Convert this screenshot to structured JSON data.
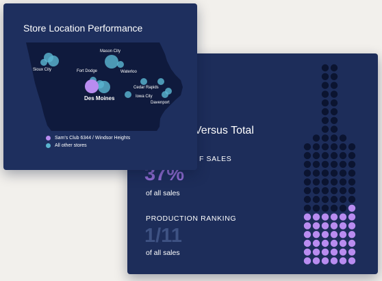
{
  "back_card": {
    "title_fragment": "Versus Total",
    "share": {
      "label_fragment": "F SALES",
      "value": "37%",
      "sub": "of all sales"
    },
    "ranking": {
      "label": "PRODUCTION RANKING",
      "value": "1/11",
      "sub": "of all sales"
    },
    "bottle_chart": {
      "filled_dots": 37,
      "total_dots": 108,
      "filled_color": "#b98cf0",
      "empty_color": "#0b1430"
    }
  },
  "front_card": {
    "title": "Store Location Performance",
    "map": {
      "fill_color": "#0f1a3d",
      "highlight_color": "#b98cf0",
      "other_color": "#5ab5cf",
      "cities": [
        {
          "name": "Sioux City",
          "emphasis": false
        },
        {
          "name": "Mason City",
          "emphasis": false
        },
        {
          "name": "Fort Dodge",
          "emphasis": false
        },
        {
          "name": "Waterloo",
          "emphasis": false
        },
        {
          "name": "Cedar Rapids",
          "emphasis": false
        },
        {
          "name": "Iowa City",
          "emphasis": false
        },
        {
          "name": "Davenport",
          "emphasis": false
        },
        {
          "name": "Des Moines",
          "emphasis": true
        }
      ]
    },
    "legend": [
      {
        "label": "Sam's Club 6344 / Windsor Heights",
        "color": "#b98cf0"
      },
      {
        "label": "All other stores",
        "color": "#5ab5cf"
      }
    ]
  }
}
